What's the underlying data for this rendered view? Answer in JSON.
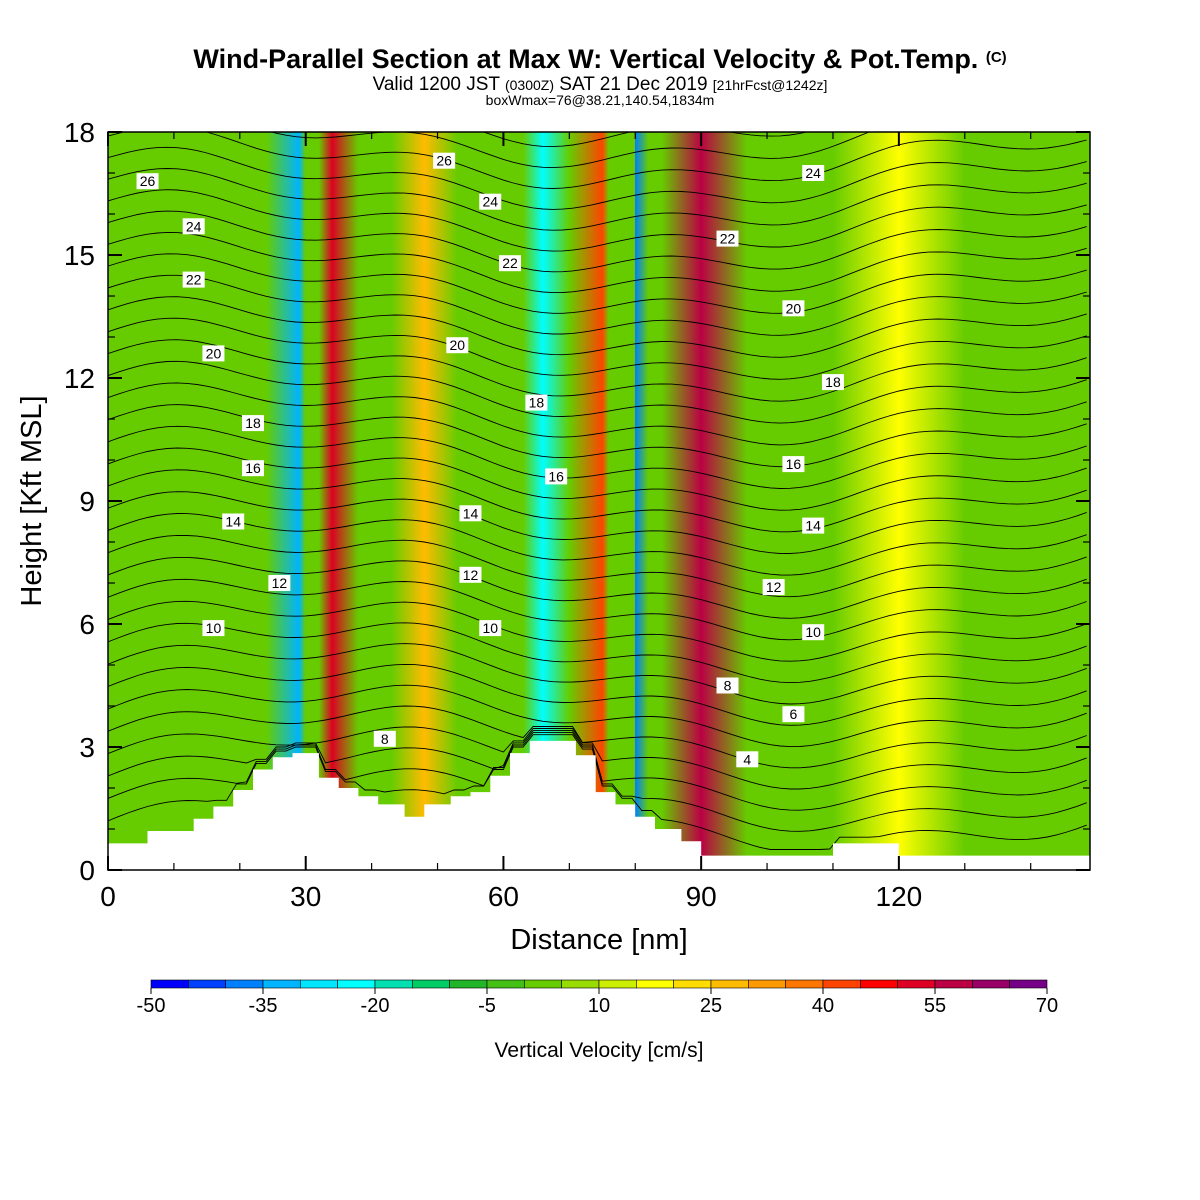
{
  "header": {
    "title_main": "Wind-Parallel Section at Max W: Vertical Velocity & Pot.Temp.",
    "title_copyright": "(C)",
    "subtitle_a": "Valid 1200 JST",
    "subtitle_b": "(0300Z)",
    "subtitle_c": "SAT 21 Dec 2019",
    "subtitle_d": "[21hrFcst@1242z]",
    "subtitle2": "boxWmax=76@38.21,140.54,1834m"
  },
  "chart_data": {
    "type": "heatmap",
    "xlabel": "Distance [nm]",
    "ylabel": "Height [Kft MSL]",
    "xlim": [
      0,
      149
    ],
    "ylim": [
      0,
      18
    ],
    "x_ticks": [
      0,
      30,
      60,
      90,
      120
    ],
    "y_ticks": [
      0,
      3,
      6,
      9,
      12,
      15,
      18
    ],
    "colorbar": {
      "label": "Vertical Velocity [cm/s]",
      "tick_labels": [
        -50,
        -35,
        -20,
        -5,
        10,
        25,
        40,
        55,
        70
      ],
      "levels": [
        -50,
        -45,
        -40,
        -35,
        -30,
        -25,
        -20,
        -15,
        -10,
        -5,
        0,
        5,
        10,
        15,
        20,
        25,
        30,
        35,
        40,
        45,
        50,
        55,
        60,
        65,
        70
      ],
      "colors": [
        "#0000ff",
        "#0040ff",
        "#0080ff",
        "#00b4ff",
        "#00e6ff",
        "#00ffff",
        "#00e0b0",
        "#00cc66",
        "#22b52a",
        "#44c015",
        "#66cc00",
        "#99dd00",
        "#ccee00",
        "#ffff00",
        "#ffdd00",
        "#ffbb00",
        "#ff9900",
        "#ff7700",
        "#ff4400",
        "#ff0000",
        "#dd0022",
        "#bb0044",
        "#990066",
        "#770088"
      ]
    },
    "vertical_velocity_bands": [
      {
        "name": "downdraft",
        "x": [
          24,
          29,
          32
        ],
        "peak": -35
      },
      {
        "name": "updraft",
        "x": [
          30,
          34,
          38
        ],
        "peak": 50
      },
      {
        "name": "updraft",
        "x": [
          43,
          48,
          53
        ],
        "peak": 25
      },
      {
        "name": "downdraft",
        "x": [
          63,
          66,
          70
        ],
        "peak": -25
      },
      {
        "name": "updraft",
        "x": [
          70,
          75,
          80
        ],
        "peak": 40
      },
      {
        "name": "downdraft",
        "x": [
          76,
          80,
          82
        ],
        "peak": -40
      },
      {
        "name": "updraft",
        "x": [
          84,
          90,
          97
        ],
        "peak": 55
      },
      {
        "name": "updraft",
        "x": [
          110,
          120,
          130
        ],
        "peak": 15
      }
    ],
    "potential_temperature": {
      "contour_values": [
        4,
        6,
        8,
        10,
        12,
        14,
        16,
        18,
        20,
        22,
        24,
        26
      ],
      "labels": [
        {
          "value": 26,
          "x": 6,
          "y": 16.8
        },
        {
          "value": 24,
          "x": 13,
          "y": 15.7
        },
        {
          "value": 22,
          "x": 13,
          "y": 14.4
        },
        {
          "value": 20,
          "x": 16,
          "y": 12.6
        },
        {
          "value": 18,
          "x": 22,
          "y": 10.9
        },
        {
          "value": 16,
          "x": 22,
          "y": 9.8
        },
        {
          "value": 14,
          "x": 19,
          "y": 8.5
        },
        {
          "value": 12,
          "x": 26,
          "y": 7.0
        },
        {
          "value": 10,
          "x": 16,
          "y": 5.9
        },
        {
          "value": 8,
          "x": 42,
          "y": 3.2
        },
        {
          "value": 26,
          "x": 51,
          "y": 17.3
        },
        {
          "value": 24,
          "x": 58,
          "y": 16.3
        },
        {
          "value": 22,
          "x": 61,
          "y": 14.8
        },
        {
          "value": 20,
          "x": 53,
          "y": 12.8
        },
        {
          "value": 18,
          "x": 65,
          "y": 11.4
        },
        {
          "value": 16,
          "x": 68,
          "y": 9.6
        },
        {
          "value": 14,
          "x": 55,
          "y": 8.7
        },
        {
          "value": 12,
          "x": 55,
          "y": 7.2
        },
        {
          "value": 10,
          "x": 58,
          "y": 5.9
        },
        {
          "value": 24,
          "x": 107,
          "y": 17.0
        },
        {
          "value": 22,
          "x": 94,
          "y": 15.4
        },
        {
          "value": 20,
          "x": 104,
          "y": 13.7
        },
        {
          "value": 18,
          "x": 110,
          "y": 11.9
        },
        {
          "value": 16,
          "x": 104,
          "y": 9.9
        },
        {
          "value": 14,
          "x": 107,
          "y": 8.4
        },
        {
          "value": 12,
          "x": 101,
          "y": 6.9
        },
        {
          "value": 10,
          "x": 107,
          "y": 5.8
        },
        {
          "value": 8,
          "x": 94,
          "y": 4.5
        },
        {
          "value": 6,
          "x": 104,
          "y": 3.8
        },
        {
          "value": 4,
          "x": 97,
          "y": 2.7
        }
      ]
    },
    "terrain": {
      "x": [
        0,
        6,
        6,
        13,
        13,
        16,
        16,
        19,
        19,
        22,
        22,
        25,
        25,
        28,
        28,
        32,
        32,
        35,
        35,
        38,
        38,
        41,
        41,
        45,
        45,
        48,
        48,
        52,
        52,
        55,
        55,
        58,
        58,
        61,
        61,
        64,
        64,
        71,
        71,
        74,
        74,
        77,
        77,
        80,
        80,
        83,
        83,
        87,
        87,
        90,
        90,
        110,
        110,
        120,
        120,
        149
      ],
      "height": [
        0.65,
        0.65,
        0.95,
        0.95,
        1.25,
        1.25,
        1.55,
        1.55,
        1.95,
        1.95,
        2.45,
        2.45,
        2.75,
        2.75,
        2.85,
        2.85,
        2.25,
        2.25,
        2.0,
        2.0,
        1.8,
        1.8,
        1.6,
        1.6,
        1.3,
        1.3,
        1.6,
        1.6,
        1.8,
        1.8,
        1.9,
        1.9,
        2.3,
        2.3,
        2.85,
        2.85,
        3.15,
        3.15,
        2.8,
        2.8,
        1.9,
        1.9,
        1.6,
        1.6,
        1.3,
        1.3,
        1.0,
        1.0,
        0.7,
        0.7,
        0.35,
        0.35,
        0.65,
        0.65,
        0.35,
        0.35
      ]
    }
  }
}
